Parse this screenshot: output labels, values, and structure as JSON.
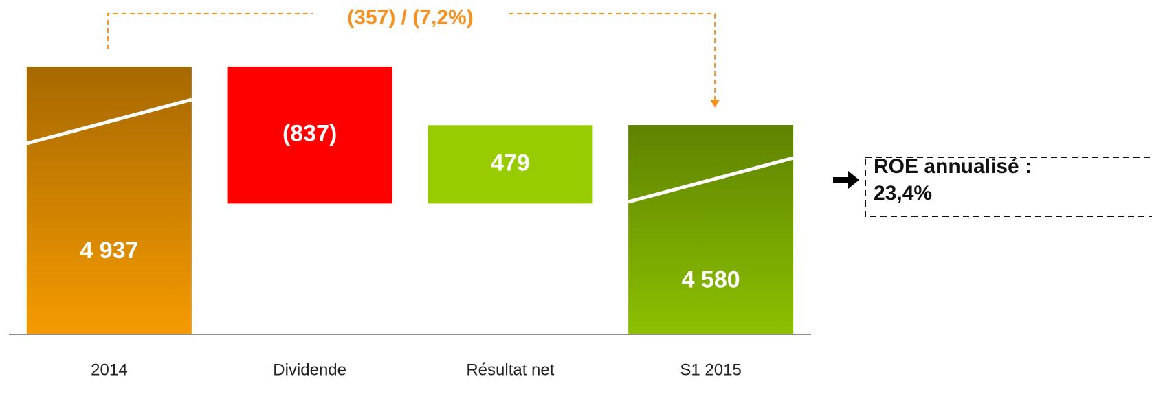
{
  "chart_data": {
    "type": "waterfall",
    "categories": [
      "2014",
      "Dividende",
      "Résultat net",
      "S1 2015"
    ],
    "values": [
      4937,
      -837,
      479,
      4580
    ],
    "value_labels": [
      "4 937",
      "(837)",
      "479",
      "4 580"
    ],
    "measure": [
      "absolute",
      "relative",
      "relative",
      "total"
    ],
    "colors": [
      "#f59a00",
      "#ff0000",
      "#99cc00",
      "#8cc000"
    ],
    "ylim": [
      3300,
      5000
    ],
    "axis_break": true,
    "annotation": "(357) / (7,2%)",
    "annotation_color": "#f7901e",
    "callout": [
      "ROE annualisé :",
      "23,4%"
    ]
  }
}
